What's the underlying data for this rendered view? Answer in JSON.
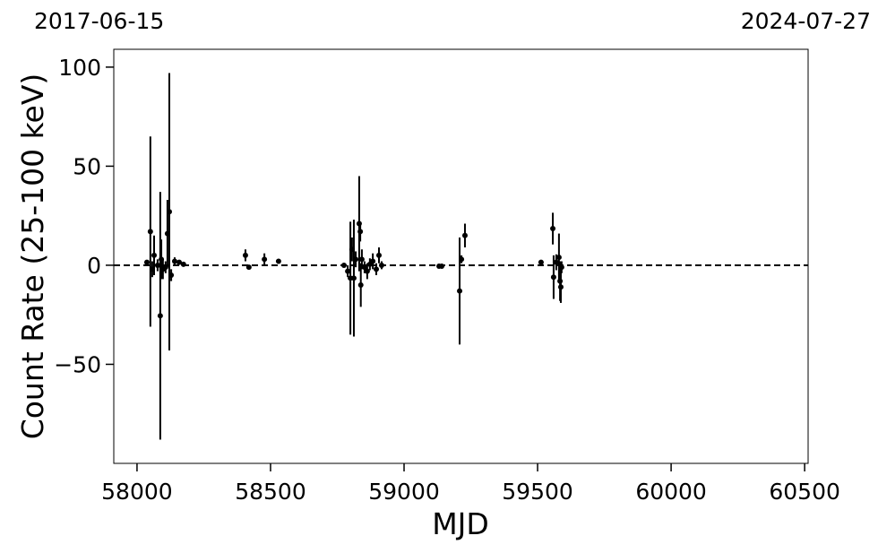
{
  "chart_data": {
    "type": "errorbar",
    "annotations": [
      "2017-06-15",
      "2024-07-27"
    ],
    "xlabel": "MJD",
    "ylabel": "Count Rate (25-100 keV)",
    "x": [
      58037,
      58050,
      58057,
      58064,
      58077,
      58087,
      58091,
      58097,
      58107,
      58114,
      58121,
      58128,
      58141,
      58158,
      58174,
      58406,
      58419,
      58477,
      58530,
      58775,
      58789,
      58799,
      58805,
      58812,
      58819,
      58832,
      58836,
      58838,
      58842,
      58852,
      58862,
      58872,
      58883,
      58896,
      58906,
      58916,
      59131,
      59141,
      59208,
      59215,
      59228,
      59513,
      59557,
      59560,
      59570,
      59580,
      59584,
      59587,
      59590
    ],
    "values": [
      1.5,
      17,
      -2,
      5,
      0,
      -25.5,
      3,
      -2,
      -1,
      16,
      27,
      -5,
      2,
      1.5,
      0.5,
      5,
      -1,
      3,
      2,
      0,
      -3,
      -6.5,
      8,
      -6.5,
      3,
      21,
      17,
      -10,
      3,
      -1,
      -3,
      0.5,
      2,
      -2,
      5,
      0,
      -0.5,
      -0.5,
      -13,
      3,
      15,
      1.5,
      18.5,
      -6,
      1.5,
      4,
      -8,
      -11,
      -1
    ],
    "errors": [
      1,
      48,
      4,
      10,
      3,
      62.5,
      10,
      5,
      3,
      17,
      70,
      3,
      2,
      1,
      1,
      3,
      1,
      3,
      1,
      1,
      3,
      28.5,
      6,
      29.5,
      4,
      24,
      5,
      11,
      5,
      3,
      4,
      3,
      4,
      3,
      4,
      2,
      1,
      1,
      27,
      2,
      6,
      1,
      8,
      11,
      4,
      12,
      10,
      8,
      3
    ],
    "color": "#000000",
    "hline": 0,
    "xlim": [
      57913,
      60513
    ],
    "xticks": [
      58000,
      58500,
      59000,
      59500,
      60000,
      60500
    ],
    "ylim": [
      -100,
      109
    ],
    "yticks": [
      {
        "value": -50,
        "label": "−50"
      },
      0,
      50,
      100
    ]
  }
}
